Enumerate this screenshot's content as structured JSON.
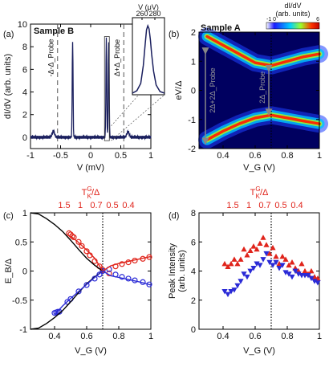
{
  "colors": {
    "red": "#e0241b",
    "blue": "#2a2ad6",
    "navy": "#1a1f5e",
    "black": "#000000"
  },
  "panel_labels": [
    "(a)",
    "(b)",
    "(c)",
    "(d)"
  ],
  "panel_a": {
    "title": "Sample B",
    "ylabel": "dI/dV (arb. units)",
    "xlabel": "V (mV)",
    "xticks": [
      "-1",
      "-0.5",
      "0",
      "0.5",
      "1"
    ],
    "yticks": [
      "0",
      "2",
      "4",
      "6",
      "8",
      "10"
    ],
    "ann_left": "-Δ-Δ_Probe",
    "ann_right": "Δ+Δ_Probe",
    "inset_xlabel": "V (μV)",
    "inset_xticks": [
      "260",
      "280"
    ]
  },
  "panel_b": {
    "title": "Sample A",
    "colorbar_title": "dI/dV",
    "colorbar_units": "(arb. units)",
    "colorbar_min": "-1 0",
    "colorbar_max": "6",
    "ylabel": "eV/Δ",
    "xlabel": "V_G (V)",
    "xticks": [
      "0.4",
      "0.6",
      "0.8",
      "1"
    ],
    "yticks": [
      "-2",
      "-1",
      "0",
      "1",
      "2"
    ],
    "ann_left": "2Δ+2Δ_Probe",
    "ann_right": "2Δ_Probe"
  },
  "panel_c": {
    "ylabel": "E_B/Δ",
    "xlabel": "V_G (V)",
    "top_label": "T_K^G/Δ",
    "top_ticks": [
      "1.5",
      "1",
      "0.7",
      "0.5",
      "0.4"
    ],
    "xticks": [
      "0.4",
      "0.6",
      "0.8",
      "1"
    ],
    "yticks": [
      "-1",
      "-0.5",
      "0",
      "0.5",
      "1"
    ]
  },
  "panel_d": {
    "ylabel": "Peak Intensity",
    "ylabel2": "(arb. units)",
    "xlabel": "V_G (V)",
    "top_label": "T_K^G/Δ",
    "top_ticks": [
      "1.5",
      "1",
      "0.7",
      "0.5",
      "0.4"
    ],
    "xticks": [
      "0.4",
      "0.6",
      "0.8",
      "1"
    ],
    "yticks": [
      "0",
      "2",
      "4",
      "6",
      "8"
    ]
  },
  "chart_data": [
    {
      "panel": "a",
      "type": "line",
      "title": "Sample B",
      "xlabel": "V (mV)",
      "ylabel": "dI/dV (arb. units)",
      "xlim": [
        -1,
        1
      ],
      "ylim": [
        -1,
        10
      ],
      "baseline": 0.0,
      "peaks": [
        {
          "x": -0.62,
          "y": 0.55
        },
        {
          "x": -0.3,
          "y": 8.5
        },
        {
          "x": 0.26,
          "y": 8.7
        },
        {
          "x": 0.3,
          "y": 8.3
        },
        {
          "x": 0.62,
          "y": 0.5
        }
      ],
      "dashed_lines_x": [
        -0.55,
        0.55
      ]
    },
    {
      "panel": "a-inset",
      "type": "line",
      "xlabel": "V (μV)",
      "xticks": [
        260,
        280
      ],
      "x": [
        245,
        252,
        258,
        262,
        265,
        267,
        269,
        271,
        273,
        275,
        278,
        282,
        288,
        295
      ],
      "y": [
        0.2,
        0.5,
        1.4,
        3.6,
        6.3,
        8.0,
        8.5,
        8.1,
        6.8,
        5.0,
        2.9,
        1.2,
        0.4,
        0.2
      ]
    },
    {
      "panel": "b",
      "type": "heatmap",
      "title": "Sample A",
      "xlabel": "V_G (V)",
      "ylabel": "eV/Δ",
      "xlim": [
        0.25,
        1.0
      ],
      "ylim": [
        -2,
        2
      ],
      "colorbar_range": [
        -1,
        6
      ],
      "upper_ridge": {
        "x": [
          0.3,
          0.4,
          0.5,
          0.6,
          0.7,
          0.8,
          0.9,
          1.0
        ],
        "y": [
          1.85,
          1.55,
          1.25,
          0.95,
          0.85,
          1.0,
          1.15,
          1.25
        ]
      },
      "lower_ridge": {
        "x": [
          0.3,
          0.4,
          0.5,
          0.6,
          0.7,
          0.8,
          0.9,
          1.0
        ],
        "y": [
          -1.7,
          -1.4,
          -1.15,
          -0.95,
          -0.85,
          -0.95,
          -1.05,
          -1.15
        ]
      },
      "dotted_line_x": 0.7
    },
    {
      "panel": "c",
      "type": "scatter",
      "xlabel": "V_G (V)",
      "ylabel": "E_B/Δ",
      "xlim": [
        0.25,
        1.0
      ],
      "ylim": [
        -1,
        1
      ],
      "series": [
        {
          "color": "red",
          "marker": "circle",
          "x": [
            0.49,
            0.5,
            0.51,
            0.52,
            0.55,
            0.57,
            0.6,
            0.62,
            0.65,
            0.68,
            0.7,
            0.74,
            0.78,
            0.82,
            0.86,
            0.9,
            0.95,
            0.99
          ],
          "y": [
            0.65,
            0.63,
            0.6,
            0.58,
            0.5,
            0.43,
            0.34,
            0.27,
            0.17,
            0.08,
            0.02,
            -0.04,
            0.08,
            0.12,
            0.15,
            0.18,
            0.21,
            0.24
          ]
        },
        {
          "color": "blue",
          "marker": "circle",
          "x": [
            0.4,
            0.41,
            0.42,
            0.43,
            0.48,
            0.5,
            0.55,
            0.6,
            0.65,
            0.68,
            0.7,
            0.74,
            0.78,
            0.82,
            0.86,
            0.9,
            0.95,
            0.99
          ],
          "y": [
            -0.72,
            -0.71,
            -0.7,
            -0.7,
            -0.53,
            -0.48,
            -0.35,
            -0.24,
            -0.13,
            -0.06,
            0.0,
            0.03,
            -0.06,
            -0.1,
            -0.13,
            -0.16,
            -0.19,
            -0.23
          ]
        },
        {
          "color": "black",
          "marker": "line",
          "name": "",
          "x": [
            0.25,
            0.3,
            0.35,
            0.4,
            0.45,
            0.5,
            0.55,
            0.6,
            0.65,
            0.7
          ],
          "y": [
            1.0,
            0.98,
            0.9,
            0.8,
            0.68,
            0.53,
            0.37,
            0.22,
            0.1,
            0.0
          ]
        },
        {
          "color": "black",
          "marker": "line",
          "name": "",
          "x": [
            0.25,
            0.3,
            0.35,
            0.4,
            0.45,
            0.5,
            0.55,
            0.6,
            0.65,
            0.7
          ],
          "y": [
            -1.0,
            -0.98,
            -0.9,
            -0.8,
            -0.68,
            -0.53,
            -0.37,
            -0.22,
            -0.1,
            0.0
          ]
        },
        {
          "color": "red",
          "marker": "line",
          "name": "",
          "x": [
            0.5,
            0.55,
            0.6,
            0.65,
            0.7,
            0.75,
            0.8,
            0.85,
            0.9,
            0.95,
            1.0
          ],
          "y": [
            0.6,
            0.49,
            0.36,
            0.22,
            0.0,
            0.09,
            0.13,
            0.16,
            0.19,
            0.22,
            0.25
          ]
        },
        {
          "color": "blue",
          "marker": "line",
          "name": "",
          "x": [
            0.4,
            0.45,
            0.5,
            0.55,
            0.6,
            0.65,
            0.7,
            0.75,
            0.8,
            0.85,
            0.9,
            0.95,
            1.0
          ],
          "y": [
            -0.75,
            -0.6,
            -0.47,
            -0.35,
            -0.23,
            -0.11,
            0.0,
            -0.08,
            -0.11,
            -0.14,
            -0.17,
            -0.2,
            -0.24
          ]
        }
      ],
      "dotted_line_x": 0.7
    },
    {
      "panel": "d",
      "type": "scatter",
      "xlabel": "V_G (V)",
      "ylabel": "Peak Intensity (arb. units)",
      "xlim": [
        0.25,
        1.0
      ],
      "ylim": [
        0,
        8
      ],
      "series": [
        {
          "color": "red",
          "marker": "triangle-up",
          "x": [
            0.41,
            0.43,
            0.45,
            0.47,
            0.49,
            0.51,
            0.53,
            0.55,
            0.57,
            0.59,
            0.61,
            0.63,
            0.65,
            0.67,
            0.69,
            0.71,
            0.73,
            0.75,
            0.77,
            0.79,
            0.81,
            0.83,
            0.85,
            0.87,
            0.89,
            0.91,
            0.93,
            0.95,
            0.97,
            0.99
          ],
          "y": [
            4.5,
            4.3,
            4.5,
            4.8,
            4.5,
            4.8,
            5.5,
            5.1,
            5.4,
            5.7,
            5.5,
            5.9,
            6.3,
            5.8,
            5.2,
            5.6,
            5.0,
            4.5,
            5.0,
            4.8,
            4.4,
            4.6,
            4.2,
            4.0,
            4.5,
            4.0,
            3.8,
            4.0,
            3.6,
            3.5
          ]
        },
        {
          "color": "blue",
          "marker": "triangle-down",
          "x": [
            0.41,
            0.43,
            0.45,
            0.47,
            0.49,
            0.51,
            0.53,
            0.55,
            0.57,
            0.59,
            0.61,
            0.63,
            0.65,
            0.67,
            0.69,
            0.71,
            0.73,
            0.75,
            0.77,
            0.79,
            0.81,
            0.83,
            0.85,
            0.87,
            0.89,
            0.91,
            0.93,
            0.95,
            0.97,
            0.99
          ],
          "y": [
            2.6,
            2.4,
            2.6,
            2.7,
            3.0,
            3.3,
            3.8,
            3.6,
            4.0,
            4.2,
            4.5,
            4.4,
            4.8,
            5.2,
            4.6,
            4.4,
            4.6,
            4.2,
            4.4,
            3.9,
            3.8,
            3.6,
            4.0,
            3.8,
            3.7,
            3.7,
            3.7,
            3.5,
            3.3,
            3.2
          ]
        }
      ],
      "dotted_line_x": 0.7
    }
  ]
}
